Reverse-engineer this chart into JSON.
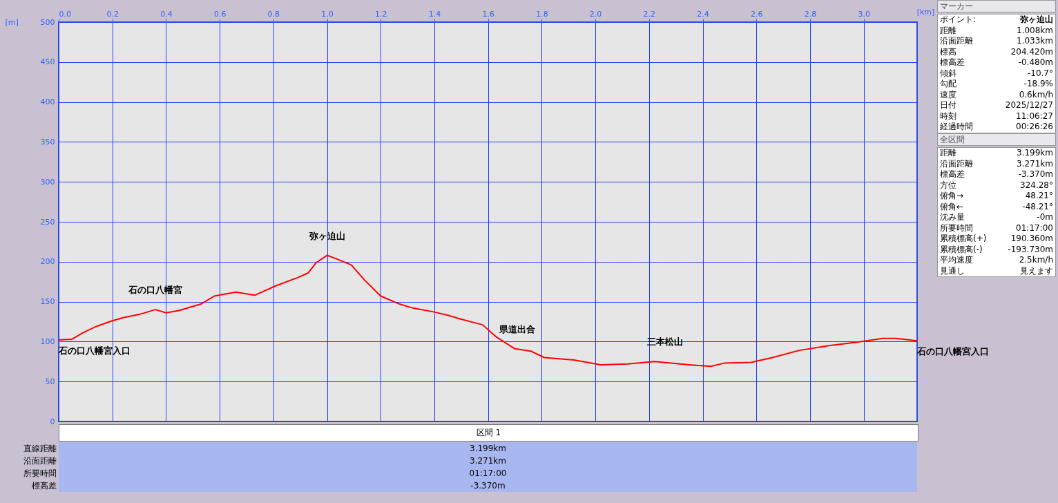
{
  "chart_data": [
    {
      "type": "line",
      "xlabel": "[km]",
      "ylabel": "[m]",
      "x": [
        0,
        0.05,
        0.09,
        0.14,
        0.19,
        0.24,
        0.3,
        0.36,
        0.4,
        0.45,
        0.53,
        0.58,
        0.66,
        0.73,
        0.81,
        0.89,
        0.93,
        0.96,
        1.0,
        1.04,
        1.09,
        1.14,
        1.2,
        1.27,
        1.32,
        1.4,
        1.45,
        1.5,
        1.58,
        1.63,
        1.7,
        1.76,
        1.81,
        1.92,
        2.02,
        2.12,
        2.22,
        2.35,
        2.43,
        2.48,
        2.58,
        2.66,
        2.76,
        2.87,
        2.97,
        3.07,
        3.12,
        3.199
      ],
      "series": [
        {
          "color": "#ff0000",
          "values": [
            102,
            103,
            111,
            119,
            125,
            130,
            134,
            140,
            136,
            139,
            147,
            157,
            162,
            158,
            170,
            180,
            186,
            199,
            208,
            203,
            196,
            177,
            157,
            147,
            142,
            137,
            133,
            128,
            121,
            106,
            91,
            88,
            80,
            77,
            71,
            72,
            75,
            71,
            69,
            73,
            74,
            80,
            89,
            95,
            99,
            104,
            104,
            101
          ]
        }
      ],
      "xlim": [
        0,
        3.199
      ],
      "ylim": [
        0,
        500
      ],
      "xticks": [
        {
          "value": 0,
          "label": "0.0"
        },
        0.2,
        0.4,
        0.6,
        0.8,
        {
          "value": 1,
          "label": "1.0"
        },
        1.2,
        1.4,
        1.6,
        1.8,
        {
          "value": 2,
          "label": "2.0"
        },
        2.2,
        2.4,
        2.6,
        2.8,
        {
          "value": 3,
          "label": "3.0"
        }
      ],
      "yticks": [
        0,
        50,
        100,
        150,
        200,
        250,
        300,
        350,
        400,
        450,
        500
      ],
      "grid": true,
      "annotations": [
        {
          "text": "石の口八幡宮入口",
          "x": 0,
          "y": 102
        },
        {
          "text": "石の口八幡宮",
          "x": 0.36,
          "y": 140
        },
        {
          "text": "弥ヶ迫山",
          "x": 1.0,
          "y": 208
        },
        {
          "text": "県道出合",
          "x": 1.71,
          "y": 91
        },
        {
          "text": "三本松山",
          "x": 2.26,
          "y": 75
        },
        {
          "text": "石の口八幡宮入口",
          "x": 3.199,
          "y": 101
        }
      ]
    },
    {
      "type": "other",
      "title": "マーカー",
      "annotations": [
        "ポイント:\t弥ヶ迫山",
        "距離\t1.008km",
        "沿面距離\t1.033km",
        "標高\t204.420m",
        "標高差\t-0.480m",
        "傾斜\t-10.7°",
        "勾配\t-18.9%",
        "速度\t0.6km/h",
        "日付\t2025/12/27",
        "時刻\t11:06:27",
        "経過時間\t00:26:26"
      ]
    },
    {
      "type": "other",
      "title": "全区間",
      "annotations": [
        "距離\t3.199km",
        "沿面距離\t3.271km",
        "標高差\t-3.370m",
        "方位\t324.28°",
        "俯角→\t48.21°",
        "俯角←\t-48.21°",
        "沈み量\t-0m",
        "所要時間\t01:17:00",
        "累積標高(+)\t190.360m",
        "累積標高(-)\t-193.730m",
        "平均速度\t2.5km/h",
        "見通し\t見えます"
      ]
    },
    {
      "type": "other",
      "title": "区間 1",
      "annotations": [
        "直線距離\t3.199km",
        "沿面距離\t3.271km",
        "所要時間\t01:17:00",
        "標高差\t-3.370m"
      ]
    }
  ]
}
